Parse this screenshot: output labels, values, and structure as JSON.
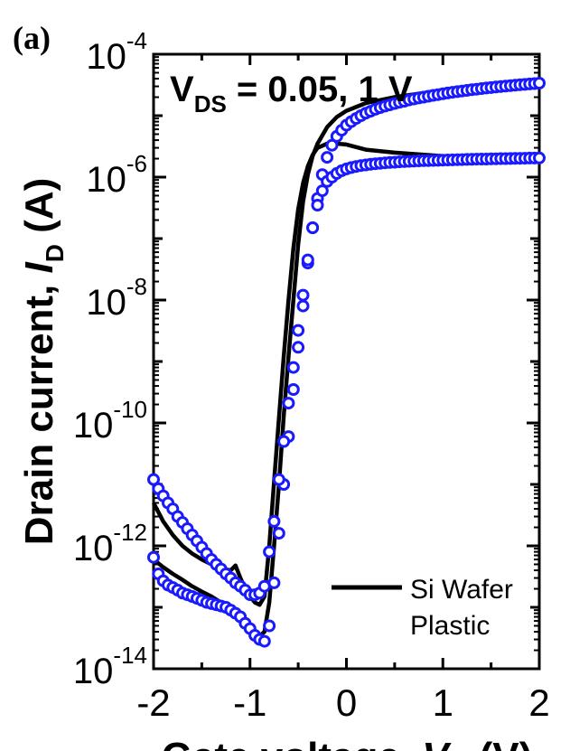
{
  "panel_label": "(a)",
  "annotation": {
    "prefix": "V",
    "sub": "DS",
    "suffix": " = 0.05, 1 V"
  },
  "legend": {
    "placement": "bottom-right",
    "entries": [
      {
        "label": "Si Wafer",
        "marker": "line",
        "color": "#000000"
      },
      {
        "label": "Plastic",
        "marker": "circle",
        "color": "#1a1aff"
      }
    ]
  },
  "axes": {
    "ylabel": {
      "prefix": "Drain current, ",
      "italic": "I",
      "sub": "D",
      "suffix": " (A)"
    },
    "xlabel": {
      "prefix": "Gate voltage, ",
      "italic": "V",
      "sub": "G",
      "suffix": " (V)"
    },
    "xticks": [
      "-2",
      "-1",
      "0",
      "1",
      "2"
    ],
    "yticks": [
      {
        "base": "10",
        "exp": "-14"
      },
      {
        "base": "10",
        "exp": "-12"
      },
      {
        "base": "10",
        "exp": "-10"
      },
      {
        "base": "10",
        "exp": "-8"
      },
      {
        "base": "10",
        "exp": "-6"
      },
      {
        "base": "10",
        "exp": "-4"
      }
    ]
  },
  "chart_data": {
    "type": "scatter",
    "xlim": [
      -2,
      2
    ],
    "ylim": [
      1e-14,
      0.0001
    ],
    "yscale": "log",
    "grid": false,
    "series": [
      {
        "name": "Si Wafer",
        "condition": "VDS = 0.05 V",
        "style": "line",
        "color": "#000000",
        "x": [
          -2.0,
          -1.9,
          -1.8,
          -1.7,
          -1.6,
          -1.5,
          -1.4,
          -1.3,
          -1.2,
          -1.1,
          -1.0,
          -0.95,
          -0.9,
          -0.85,
          -0.8,
          -0.75,
          -0.7,
          -0.65,
          -0.6,
          -0.55,
          -0.5,
          -0.45,
          -0.4,
          -0.35,
          -0.3,
          -0.2,
          -0.1,
          0.0,
          0.2,
          0.5,
          1.0,
          1.5,
          2.0
        ],
        "y": [
          6e-13,
          4.5e-13,
          3.5e-13,
          2.8e-13,
          2.2e-13,
          1.8e-13,
          1.5e-13,
          1.2e-13,
          1e-13,
          6e-14,
          4.2e-14,
          3.6e-14,
          3.4e-14,
          4e-14,
          1.2e-13,
          1e-12,
          1e-11,
          1.3e-10,
          1.2e-09,
          1e-08,
          8e-08,
          4e-07,
          1.1e-06,
          2.2e-06,
          3.5e-06,
          6.5e-06,
          9.5e-06,
          1.2e-05,
          1.6e-05,
          2e-05,
          2.6e-05,
          3e-05,
          3.4e-05
        ]
      },
      {
        "name": "Si Wafer",
        "condition": "VDS = 1 V",
        "style": "line",
        "color": "#000000",
        "x": [
          -2.0,
          -1.9,
          -1.8,
          -1.7,
          -1.6,
          -1.5,
          -1.4,
          -1.3,
          -1.2,
          -1.15,
          -1.1,
          -1.05,
          -1.0,
          -0.95,
          -0.9,
          -0.85,
          -0.8,
          -0.75,
          -0.7,
          -0.65,
          -0.6,
          -0.55,
          -0.5,
          -0.45,
          -0.4,
          -0.35,
          -0.3,
          -0.2,
          -0.1,
          0.0,
          0.2,
          0.5,
          1.0,
          1.5,
          2.0
        ],
        "y": [
          5e-12,
          2.5e-12,
          1.5e-12,
          1e-12,
          7.5e-13,
          6e-13,
          5e-13,
          4.3e-13,
          4e-13,
          4.8e-13,
          3e-13,
          2e-13,
          1.5e-13,
          1.2e-13,
          1.1e-13,
          1.5e-13,
          1e-12,
          1.1e-11,
          1.2e-10,
          1.2e-09,
          1e-08,
          7e-08,
          3e-07,
          8e-07,
          1.5e-06,
          2.3e-06,
          3e-06,
          3.5e-06,
          3.5e-06,
          3.4e-06,
          2.8e-06,
          2.5e-06,
          2.2e-06,
          2.1e-06,
          2.1e-06
        ]
      },
      {
        "name": "Plastic",
        "condition": "VDS = 0.05 V",
        "style": "marker",
        "color": "#1a1aff",
        "x": [
          -2.0,
          -1.95,
          -1.9,
          -1.85,
          -1.8,
          -1.75,
          -1.7,
          -1.65,
          -1.6,
          -1.55,
          -1.5,
          -1.45,
          -1.4,
          -1.35,
          -1.3,
          -1.25,
          -1.2,
          -1.15,
          -1.1,
          -1.05,
          -1.0,
          -0.95,
          -0.9,
          -0.85,
          -0.8,
          -0.75,
          -0.7,
          -0.65,
          -0.6,
          -0.55,
          -0.5,
          -0.45,
          -0.4,
          -0.35,
          -0.3,
          -0.25,
          -0.2,
          -0.15,
          -0.1,
          -0.05,
          0.0,
          0.05,
          0.1,
          0.15,
          0.2,
          0.25,
          0.3,
          0.35,
          0.4,
          0.45,
          0.5,
          0.55,
          0.6,
          0.65,
          0.7,
          0.75,
          0.8,
          0.85,
          0.9,
          0.95,
          1.0,
          1.05,
          1.1,
          1.15,
          1.2,
          1.25,
          1.3,
          1.35,
          1.4,
          1.45,
          1.5,
          1.55,
          1.6,
          1.65,
          1.7,
          1.75,
          1.8,
          1.85,
          1.9,
          1.95,
          2.0
        ],
        "y": [
          6.5e-13,
          3.5e-13,
          2.7e-13,
          2.3e-13,
          2.1e-13,
          1.9e-13,
          1.7e-13,
          1.6e-13,
          1.5e-13,
          1.4e-13,
          1.3e-13,
          1.2e-13,
          1.15e-13,
          1.1e-13,
          1.05e-13,
          1e-13,
          9e-14,
          8e-14,
          7e-14,
          5.5e-14,
          4.5e-14,
          3.5e-14,
          3e-14,
          2.8e-14,
          5e-14,
          2.5e-13,
          1.6e-12,
          1e-11,
          6e-11,
          3.5e-10,
          1.7e-09,
          8e-09,
          4e-08,
          1.5e-07,
          4.5e-07,
          1.1e-06,
          2.1e-06,
          3.3e-06,
          4.6e-06,
          5.8e-06,
          7e-06,
          8e-06,
          9e-06,
          1e-05,
          1.1e-05,
          1.18e-05,
          1.27e-05,
          1.35e-05,
          1.43e-05,
          1.5e-05,
          1.58e-05,
          1.65e-05,
          1.72e-05,
          1.8e-05,
          1.87e-05,
          1.94e-05,
          2e-05,
          2.07e-05,
          2.14e-05,
          2.2e-05,
          2.27e-05,
          2.34e-05,
          2.4e-05,
          2.46e-05,
          2.52e-05,
          2.58e-05,
          2.64e-05,
          2.7e-05,
          2.76e-05,
          2.82e-05,
          2.87e-05,
          2.93e-05,
          2.98e-05,
          3.03e-05,
          3.08e-05,
          3.13e-05,
          3.18e-05,
          3.23e-05,
          3.28e-05,
          3.33e-05,
          3.38e-05
        ]
      },
      {
        "name": "Plastic",
        "condition": "VDS = 1 V",
        "style": "marker",
        "color": "#1a1aff",
        "x": [
          -2.0,
          -1.95,
          -1.9,
          -1.85,
          -1.8,
          -1.75,
          -1.7,
          -1.65,
          -1.6,
          -1.55,
          -1.5,
          -1.45,
          -1.4,
          -1.35,
          -1.3,
          -1.25,
          -1.2,
          -1.15,
          -1.1,
          -1.05,
          -1.0,
          -0.95,
          -0.9,
          -0.85,
          -0.8,
          -0.75,
          -0.7,
          -0.65,
          -0.6,
          -0.55,
          -0.5,
          -0.45,
          -0.4,
          -0.35,
          -0.3,
          -0.25,
          -0.2,
          -0.15,
          -0.1,
          -0.05,
          0.0,
          0.05,
          0.1,
          0.15,
          0.2,
          0.25,
          0.3,
          0.35,
          0.4,
          0.45,
          0.5,
          0.55,
          0.6,
          0.65,
          0.7,
          0.75,
          0.8,
          0.85,
          0.9,
          0.95,
          1.0,
          1.05,
          1.1,
          1.15,
          1.2,
          1.25,
          1.3,
          1.35,
          1.4,
          1.45,
          1.5,
          1.55,
          1.6,
          1.65,
          1.7,
          1.75,
          1.8,
          1.85,
          1.9,
          1.95,
          2.0
        ],
        "y": [
          1.2e-11,
          8.5e-12,
          6.5e-12,
          5e-12,
          4e-12,
          3e-12,
          2.4e-12,
          1.9e-12,
          1.5e-12,
          1.2e-12,
          9.5e-13,
          7.5e-13,
          6e-13,
          5e-13,
          4.2e-13,
          3.5e-13,
          3e-13,
          2.5e-13,
          2.2e-13,
          1.9e-13,
          1.6e-13,
          1.6e-13,
          1.7e-13,
          2.2e-13,
          8e-13,
          2.5e-12,
          1.2e-11,
          5e-11,
          2.1e-10,
          8e-10,
          3.2e-09,
          1.2e-08,
          4.5e-08,
          1.5e-07,
          3.5e-07,
          6e-07,
          8.5e-07,
          1e-06,
          1.15e-06,
          1.27e-06,
          1.36e-06,
          1.43e-06,
          1.49e-06,
          1.54e-06,
          1.58e-06,
          1.62e-06,
          1.65e-06,
          1.68e-06,
          1.71e-06,
          1.73e-06,
          1.75e-06,
          1.77e-06,
          1.79e-06,
          1.81e-06,
          1.82e-06,
          1.84e-06,
          1.85e-06,
          1.86e-06,
          1.87e-06,
          1.88e-06,
          1.89e-06,
          1.9e-06,
          1.91e-06,
          1.92e-06,
          1.93e-06,
          1.94e-06,
          1.95e-06,
          1.96e-06,
          1.97e-06,
          1.97e-06,
          1.98e-06,
          1.99e-06,
          2e-06,
          2e-06,
          2.01e-06,
          2.02e-06,
          2.02e-06,
          2.03e-06,
          2.04e-06,
          2.04e-06,
          2.05e-06
        ]
      }
    ]
  }
}
